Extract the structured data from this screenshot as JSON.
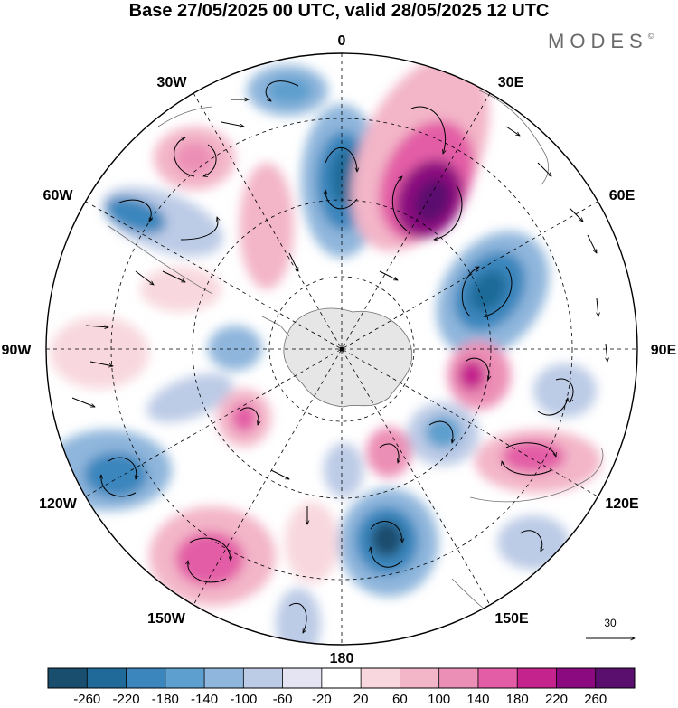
{
  "title": "Base 27/05/2025 00 UTC, valid 28/05/2025 12 UTC",
  "brand": {
    "name": "MODES",
    "mark": "©"
  },
  "map": {
    "projection": "south-polar-stereographic",
    "longitude_labels": [
      "0",
      "30E",
      "60E",
      "90E",
      "120E",
      "150E",
      "180",
      "150W",
      "120W",
      "90W",
      "60W",
      "30W"
    ],
    "reference_vector": {
      "value": "30"
    }
  },
  "colorbar": {
    "tick_labels": [
      "-260",
      "-220",
      "-180",
      "-140",
      "-100",
      "-60",
      "-20",
      "20",
      "60",
      "100",
      "140",
      "180",
      "220",
      "260"
    ],
    "colors": [
      "#1a4e6e",
      "#1f6a98",
      "#3a86bd",
      "#5d9fce",
      "#8fb6dc",
      "#bccbe6",
      "#e4e4f2",
      "#ffffff",
      "#f8d8de",
      "#f3b5c8",
      "#ec8fb6",
      "#e35da6",
      "#c4238d",
      "#8c0a7f",
      "#5a0f6e"
    ]
  },
  "colors": {
    "land": "#e6e6e6",
    "outline": "#000000"
  }
}
